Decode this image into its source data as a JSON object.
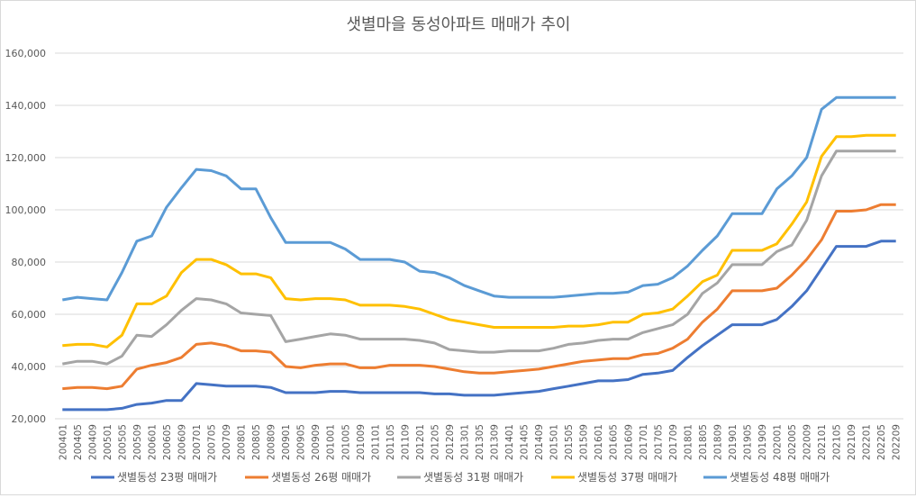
{
  "chart_data": {
    "type": "line",
    "title": "샛별마을 동성아파트 매매가 추이",
    "xlabel": "",
    "ylabel": "",
    "ylim": [
      20000,
      160000
    ],
    "yticks": [
      "20,000",
      "40,000",
      "60,000",
      "80,000",
      "100,000",
      "120,000",
      "140,000",
      "160,000"
    ],
    "grid": true,
    "legend": "bottom",
    "categories": [
      "200401",
      "200405",
      "200409",
      "200501",
      "200505",
      "200509",
      "200601",
      "200605",
      "200609",
      "200701",
      "200705",
      "200709",
      "200801",
      "200805",
      "200809",
      "200901",
      "200905",
      "200909",
      "201001",
      "201005",
      "201009",
      "201101",
      "201105",
      "201109",
      "201201",
      "201205",
      "201209",
      "201301",
      "201305",
      "201309",
      "201401",
      "201405",
      "201409",
      "201501",
      "201505",
      "201509",
      "201601",
      "201605",
      "201609",
      "201701",
      "201705",
      "201709",
      "201801",
      "201805",
      "201809",
      "201901",
      "201905",
      "201909",
      "202001",
      "202005",
      "202009",
      "202101",
      "202105",
      "202109",
      "202201",
      "202205",
      "202209"
    ],
    "series": [
      {
        "name": "샛별동성 23평 매매가",
        "color": "#4472C4",
        "values": [
          23500,
          23500,
          23500,
          23500,
          24000,
          25500,
          26000,
          27000,
          27000,
          33500,
          33000,
          32500,
          32500,
          32500,
          32000,
          30000,
          30000,
          30000,
          30500,
          30500,
          30000,
          30000,
          30000,
          30000,
          30000,
          29500,
          29500,
          29000,
          29000,
          29000,
          29500,
          30000,
          30500,
          31500,
          32500,
          33500,
          34500,
          34500,
          35000,
          37000,
          37500,
          38500,
          43500,
          48000,
          52000,
          56000,
          56000,
          56000,
          58000,
          63000,
          69000,
          77500,
          86000,
          86000,
          86000,
          88000,
          88000
        ]
      },
      {
        "name": "샛별동성 26평 매매가",
        "color": "#ED7D31",
        "values": [
          31500,
          32000,
          32000,
          31500,
          32500,
          39000,
          40500,
          41500,
          43500,
          48500,
          49000,
          48000,
          46000,
          46000,
          45500,
          40000,
          39500,
          40500,
          41000,
          41000,
          39500,
          39500,
          40500,
          40500,
          40500,
          40000,
          39000,
          38000,
          37500,
          37500,
          38000,
          38500,
          39000,
          40000,
          41000,
          42000,
          42500,
          43000,
          43000,
          44500,
          45000,
          47000,
          50500,
          57000,
          62000,
          69000,
          69000,
          69000,
          70000,
          75000,
          81000,
          88500,
          99500,
          99500,
          100000,
          102000,
          102000
        ]
      },
      {
        "name": "샛별동성 31평 매매가",
        "color": "#A5A5A5",
        "values": [
          41000,
          42000,
          42000,
          41000,
          44000,
          52000,
          51500,
          56000,
          61500,
          66000,
          65500,
          64000,
          60500,
          60000,
          59500,
          49500,
          50500,
          51500,
          52500,
          52000,
          50500,
          50500,
          50500,
          50500,
          50000,
          49000,
          46500,
          46000,
          45500,
          45500,
          46000,
          46000,
          46000,
          47000,
          48500,
          49000,
          50000,
          50500,
          50500,
          53000,
          54500,
          56000,
          60000,
          68000,
          72000,
          79000,
          79000,
          79000,
          84000,
          86500,
          96000,
          113000,
          122500,
          122500,
          122500,
          122500,
          122500
        ]
      },
      {
        "name": "샛별동성 37평 매매가",
        "color": "#FFC000",
        "values": [
          48000,
          48500,
          48500,
          47500,
          52000,
          64000,
          64000,
          67000,
          76000,
          81000,
          81000,
          79000,
          75500,
          75500,
          74000,
          66000,
          65500,
          66000,
          66000,
          65500,
          63500,
          63500,
          63500,
          63000,
          62000,
          60000,
          58000,
          57000,
          56000,
          55000,
          55000,
          55000,
          55000,
          55000,
          55500,
          55500,
          56000,
          57000,
          57000,
          60000,
          60500,
          62000,
          67000,
          72500,
          75000,
          84500,
          84500,
          84500,
          87000,
          94500,
          103000,
          120500,
          128000,
          128000,
          128500,
          128500,
          128500
        ]
      },
      {
        "name": "샛별동성 48평 매매가",
        "color": "#5B9BD5",
        "values": [
          65500,
          66500,
          66000,
          65500,
          76000,
          88000,
          90000,
          101000,
          108500,
          115500,
          115000,
          113000,
          108000,
          108000,
          97000,
          87500,
          87500,
          87500,
          87500,
          85000,
          81000,
          81000,
          81000,
          80000,
          76500,
          76000,
          74000,
          71000,
          69000,
          67000,
          66500,
          66500,
          66500,
          66500,
          67000,
          67500,
          68000,
          68000,
          68500,
          71000,
          71500,
          74000,
          78500,
          84500,
          90000,
          98500,
          98500,
          98500,
          108000,
          113000,
          120000,
          138500,
          143000,
          143000,
          143000,
          143000,
          143000
        ]
      }
    ]
  }
}
